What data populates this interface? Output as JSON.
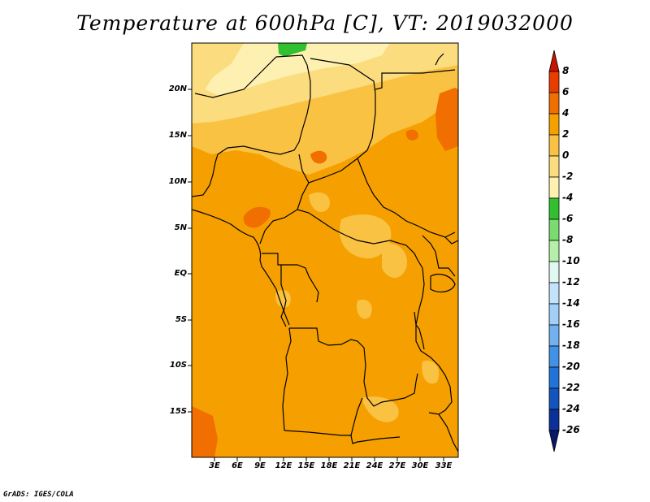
{
  "title": "Temperature at 600hPa [C], VT: 2019032000",
  "credit": "GrADS: IGES/COLA",
  "lat_labels": [
    "20N",
    "15N",
    "10N",
    "5N",
    "EQ",
    "5S",
    "10S",
    "15S"
  ],
  "lon_labels": [
    "3E",
    "6E",
    "9E",
    "12E",
    "15E",
    "18E",
    "21E",
    "24E",
    "27E",
    "30E",
    "33E"
  ],
  "colorbar": {
    "labels": [
      "8",
      "6",
      "4",
      "2",
      "0",
      "-2",
      "-4",
      "-6",
      "-8",
      "-10",
      "-12",
      "-14",
      "-16",
      "-18",
      "-20",
      "-22",
      "-24",
      "-26"
    ],
    "colors": [
      "#c81400",
      "#e83c00",
      "#f06f00",
      "#f5a000",
      "#f9c243",
      "#fbdc7e",
      "#fdf0b0",
      "#30c030",
      "#78dd6e",
      "#b5f0a8",
      "#e0f8f0",
      "#c3e2fc",
      "#a2cff8",
      "#72b0f0",
      "#4191e6",
      "#2173d8",
      "#1454bd",
      "#0c2f98",
      "#081768"
    ]
  },
  "chart_data": {
    "type": "heatmap",
    "title": "Temperature at 600hPa [C], VT: 2019032000",
    "variable": "Temperature",
    "units": "C",
    "level": "600hPa",
    "valid_time": "2019032000",
    "lon_range": [
      0,
      35
    ],
    "lat_range": [
      -20,
      25
    ],
    "contour_levels": [
      -26,
      -24,
      -22,
      -20,
      -18,
      -16,
      -14,
      -12,
      -10,
      -8,
      -6,
      -4,
      -2,
      0,
      2,
      4,
      6,
      8
    ],
    "dominant_range": [
      0,
      4
    ],
    "features": [
      {
        "region": "northern Sahara (about 23-25N, 11-17E)",
        "approx_value": -5
      },
      {
        "region": "north of about 15N",
        "approx_value": -2
      },
      {
        "region": "central and southern Africa",
        "approx_value": 3
      },
      {
        "region": "eastern Sudan near 33E, 13-19N",
        "approx_value": 5
      },
      {
        "region": "Cameroon highlands near 7N, 9E",
        "approx_value": 5
      },
      {
        "region": "southwest corner near 18S, 2E",
        "approx_value": 5
      }
    ]
  }
}
